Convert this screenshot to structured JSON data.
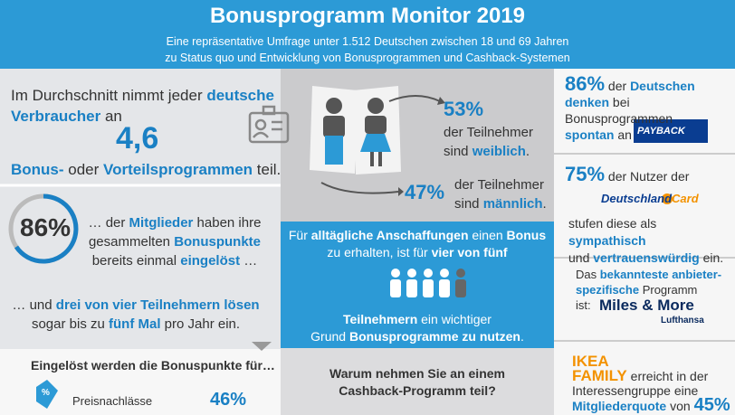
{
  "header": {
    "title": "Bonusprogramm Monitor 2019",
    "subtitle": [
      "Eine repräsentative Umfrage unter 1.512 Deutschen zwischen 18 und 69 Jahren",
      "zu Status quo und Entwicklung von Bonusprogrammen und Cashback-Systemen"
    ]
  },
  "left": {
    "average": {
      "runs": [
        "Im Durchschnitt nimmt jeder ",
        "deutsche",
        "Verbraucher",
        " an"
      ],
      "number": "4,6",
      "runs2": [
        "Bonus-",
        " oder ",
        "Vorteilsprogrammen",
        " teil."
      ]
    },
    "redeemed": {
      "percent": "86%",
      "runs": [
        "… der ",
        "Mitglieder",
        " haben ihre",
        "gesammelten ",
        "Bonuspunkte",
        "bereits einmal ",
        "eingelöst",
        " …"
      ]
    },
    "frequency": {
      "runs": [
        "… und ",
        "drei von vier Teilnehmern lösen",
        "sogar bis zu ",
        "fünf Mal",
        " pro Jahr ein."
      ]
    },
    "usage": {
      "title": "Eingelöst werden die Bonuspunkte für…",
      "icon": "%",
      "item": "Preisnachlässe",
      "percent": "46%"
    }
  },
  "middle": {
    "female": {
      "percent": "53%",
      "runs": [
        "der Teilnehmer",
        "sind ",
        "weiblich",
        "."
      ]
    },
    "male": {
      "percent": "47%",
      "runs": [
        "der Teilnehmer",
        "sind ",
        "männlich",
        "."
      ]
    },
    "box": {
      "runs": [
        "Für ",
        "alltägliche Anschaffungen",
        " einen ",
        "Bonus",
        "zu erhalten, ist für ",
        "vier von fünf"
      ],
      "runs2": [
        "Teilnehmern",
        " ein wichtiger",
        "Grund ",
        "Bonusprogramme zu nutzen",
        "."
      ]
    },
    "question": [
      "Warum nehmen Sie an einem",
      "Cashback-Programm teil?"
    ]
  },
  "right": {
    "payback": {
      "runs": [
        "86%",
        " der ",
        "Deutschen",
        "denken",
        " bei Bonusprogrammen",
        "spontan",
        " an"
      ],
      "logo": "PAYBACK"
    },
    "dcard": {
      "runs": [
        "75%",
        " der Nutzer der"
      ],
      "logo": [
        "Deutschland",
        "Card"
      ],
      "runs2": [
        "stufen diese als ",
        "sympathisch",
        "und ",
        "vertrauenswürdig",
        " ein."
      ]
    },
    "miles": {
      "runs": [
        "Das ",
        "bekannteste anbieter-",
        "spezifische",
        " Programm",
        "ist:"
      ],
      "logo": [
        "Miles & More",
        "Lufthansa"
      ]
    },
    "ikea": {
      "runs": [
        "IKEA",
        "FAMILY",
        " erreicht in der",
        "Interessengruppe eine",
        "Mitgliederquote",
        " von ",
        "45%"
      ]
    }
  }
}
